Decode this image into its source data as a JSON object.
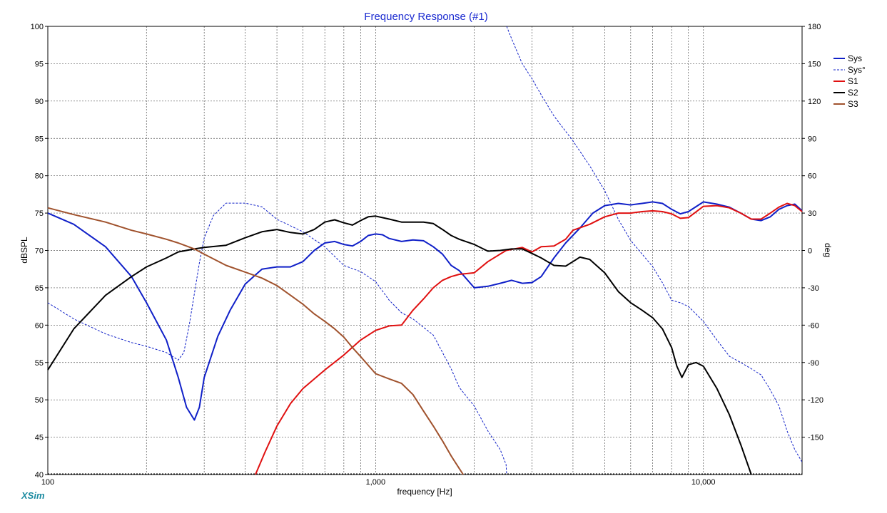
{
  "app": {
    "brand": "XSim"
  },
  "chart_data": {
    "type": "line",
    "title": "Frequency Response (#1)",
    "xlabel": "frequency [Hz]",
    "ylabel": "dBSPL",
    "y2label": "deg",
    "xscale": "log",
    "xlim": [
      100,
      20000
    ],
    "ylim": [
      40,
      100
    ],
    "y2lim": [
      -180,
      180
    ],
    "x_tick_labels": [
      {
        "value": 100,
        "label": "100"
      },
      {
        "value": 1000,
        "label": "1,000"
      },
      {
        "value": 10000,
        "label": "10,000"
      }
    ],
    "y_ticks": [
      40,
      45,
      50,
      55,
      60,
      65,
      70,
      75,
      80,
      85,
      90,
      95,
      100
    ],
    "y2_ticks": [
      -150,
      -120,
      -90,
      -60,
      -30,
      0,
      30,
      60,
      90,
      120,
      150,
      180
    ],
    "grid": true,
    "legend_position": "top-right",
    "series": [
      {
        "name": "Sys",
        "axis": "left",
        "color": "#1020c8",
        "style": "solid",
        "x": [
          100,
          120,
          150,
          180,
          200,
          230,
          250,
          265,
          280,
          290,
          300,
          330,
          360,
          400,
          450,
          500,
          550,
          600,
          650,
          700,
          750,
          800,
          850,
          900,
          950,
          1000,
          1050,
          1100,
          1200,
          1300,
          1400,
          1500,
          1600,
          1700,
          1800,
          2000,
          2200,
          2400,
          2600,
          2800,
          3000,
          3200,
          3500,
          3800,
          4200,
          4600,
          5000,
          5500,
          6000,
          6500,
          7000,
          7500,
          8000,
          8500,
          9000,
          10000,
          11000,
          12000,
          13000,
          14000,
          15000,
          16000,
          17000,
          18000,
          19000,
          20000
        ],
        "y": [
          75,
          73.5,
          70.5,
          66.5,
          63,
          58,
          53,
          49,
          47.3,
          49,
          53,
          58.5,
          62,
          65.5,
          67.5,
          67.8,
          67.8,
          68.5,
          70,
          71,
          71.2,
          70.8,
          70.6,
          71.2,
          72,
          72.2,
          72.1,
          71.6,
          71.2,
          71.4,
          71.3,
          70.5,
          69.5,
          68,
          67.3,
          65,
          65.2,
          65.6,
          66,
          65.6,
          65.7,
          66.5,
          69,
          71,
          73,
          75,
          76,
          76.3,
          76.1,
          76.3,
          76.5,
          76.3,
          75.5,
          74.9,
          75.2,
          76.5,
          76.2,
          75.8,
          75,
          74.2,
          74,
          74.5,
          75.5,
          76,
          76.2,
          75.3
        ]
      },
      {
        "name": "Sys°",
        "axis": "right",
        "color": "#1020c8",
        "style": "dashed",
        "x": [
          100,
          120,
          150,
          180,
          200,
          230,
          250,
          260,
          270,
          290,
          300,
          320,
          350,
          400,
          450,
          500,
          600,
          700,
          800,
          900,
          1000,
          1100,
          1200,
          1300,
          1500,
          1700,
          1800,
          2000,
          2200,
          2400,
          2500,
          2510,
          2600,
          2800,
          3000,
          3200,
          3500,
          4000,
          4500,
          5000,
          5500,
          6000,
          7000,
          7500,
          8000,
          8500,
          9000,
          10000,
          11000,
          12000,
          13000,
          14000,
          15000,
          16000,
          17000,
          18000,
          19000,
          20000
        ],
        "y": [
          -42,
          -55,
          -67,
          -74,
          -77,
          -82,
          -88,
          -82,
          -60,
          -10,
          10,
          28,
          38,
          38,
          35,
          25,
          15,
          3,
          -12,
          -17,
          -25,
          -40,
          -50,
          -55,
          -68,
          -95,
          -110,
          -125,
          -145,
          -160,
          -172,
          180,
          170,
          150,
          138,
          125,
          108,
          88,
          68,
          48,
          25,
          8,
          -13,
          -26,
          -40,
          -42,
          -45,
          -57,
          -72,
          -85,
          -90,
          -95,
          -100,
          -112,
          -125,
          -145,
          -160,
          -170
        ]
      },
      {
        "name": "S1",
        "axis": "left",
        "color": "#e01010",
        "style": "solid",
        "x": [
          430,
          460,
          500,
          550,
          600,
          700,
          800,
          900,
          1000,
          1100,
          1200,
          1300,
          1400,
          1500,
          1600,
          1700,
          1800,
          2000,
          2200,
          2500,
          2800,
          3000,
          3200,
          3500,
          3800,
          4000,
          4500,
          5000,
          5500,
          6000,
          6500,
          7000,
          7500,
          8000,
          8500,
          9000,
          10000,
          11000,
          12000,
          13000,
          14000,
          15000,
          16000,
          17000,
          18000,
          19000,
          20000
        ],
        "y": [
          40,
          43,
          46.5,
          49.5,
          51.5,
          54,
          56,
          58,
          59.3,
          59.9,
          60,
          62,
          63.5,
          65,
          66,
          66.5,
          66.8,
          67,
          68.5,
          70,
          70.4,
          69.8,
          70.5,
          70.6,
          71.5,
          72.7,
          73.5,
          74.5,
          75,
          75,
          75.2,
          75.3,
          75.2,
          74.9,
          74.3,
          74.4,
          75.9,
          76,
          75.7,
          75,
          74.2,
          74.2,
          75,
          75.8,
          76.3,
          76,
          75.2
        ]
      },
      {
        "name": "S2",
        "axis": "left",
        "color": "#000000",
        "style": "solid",
        "x": [
          100,
          120,
          150,
          180,
          200,
          230,
          250,
          280,
          300,
          350,
          400,
          450,
          500,
          550,
          600,
          650,
          700,
          750,
          800,
          850,
          900,
          950,
          1000,
          1100,
          1200,
          1300,
          1400,
          1500,
          1600,
          1700,
          1800,
          2000,
          2200,
          2400,
          2600,
          2800,
          3000,
          3200,
          3500,
          3800,
          4000,
          4200,
          4500,
          5000,
          5500,
          6000,
          6500,
          7000,
          7500,
          8000,
          8300,
          8600,
          9000,
          9500,
          10000,
          11000,
          12000,
          13000,
          14000
        ],
        "y": [
          54,
          59.5,
          64,
          66.5,
          67.8,
          69,
          69.8,
          70.2,
          70.4,
          70.7,
          71.7,
          72.5,
          72.8,
          72.4,
          72.2,
          72.8,
          73.8,
          74.1,
          73.7,
          73.4,
          74,
          74.5,
          74.6,
          74.2,
          73.8,
          73.8,
          73.8,
          73.6,
          72.8,
          72,
          71.5,
          70.8,
          69.9,
          70,
          70.2,
          70.2,
          69.6,
          69,
          68,
          67.9,
          68.5,
          69.1,
          68.8,
          67,
          64.5,
          63,
          62,
          61,
          59.5,
          57,
          54.5,
          53,
          54.7,
          55,
          54.5,
          51.5,
          48,
          44,
          40
        ]
      },
      {
        "name": "S3",
        "axis": "left",
        "color": "#a0522d",
        "style": "solid",
        "x": [
          100,
          120,
          150,
          180,
          200,
          230,
          250,
          280,
          300,
          350,
          400,
          450,
          500,
          550,
          600,
          650,
          700,
          750,
          800,
          850,
          900,
          1000,
          1100,
          1200,
          1300,
          1400,
          1500,
          1600,
          1700,
          1800,
          1850
        ],
        "y": [
          75.7,
          74.8,
          73.8,
          72.7,
          72.2,
          71.5,
          71,
          70.2,
          69.5,
          68,
          67.1,
          66.3,
          65.3,
          64,
          62.8,
          61.5,
          60.5,
          59.5,
          58.4,
          57,
          55.8,
          53.5,
          52.8,
          52.2,
          50.7,
          48.5,
          46.5,
          44.5,
          42.5,
          40.8,
          40
        ]
      }
    ]
  }
}
